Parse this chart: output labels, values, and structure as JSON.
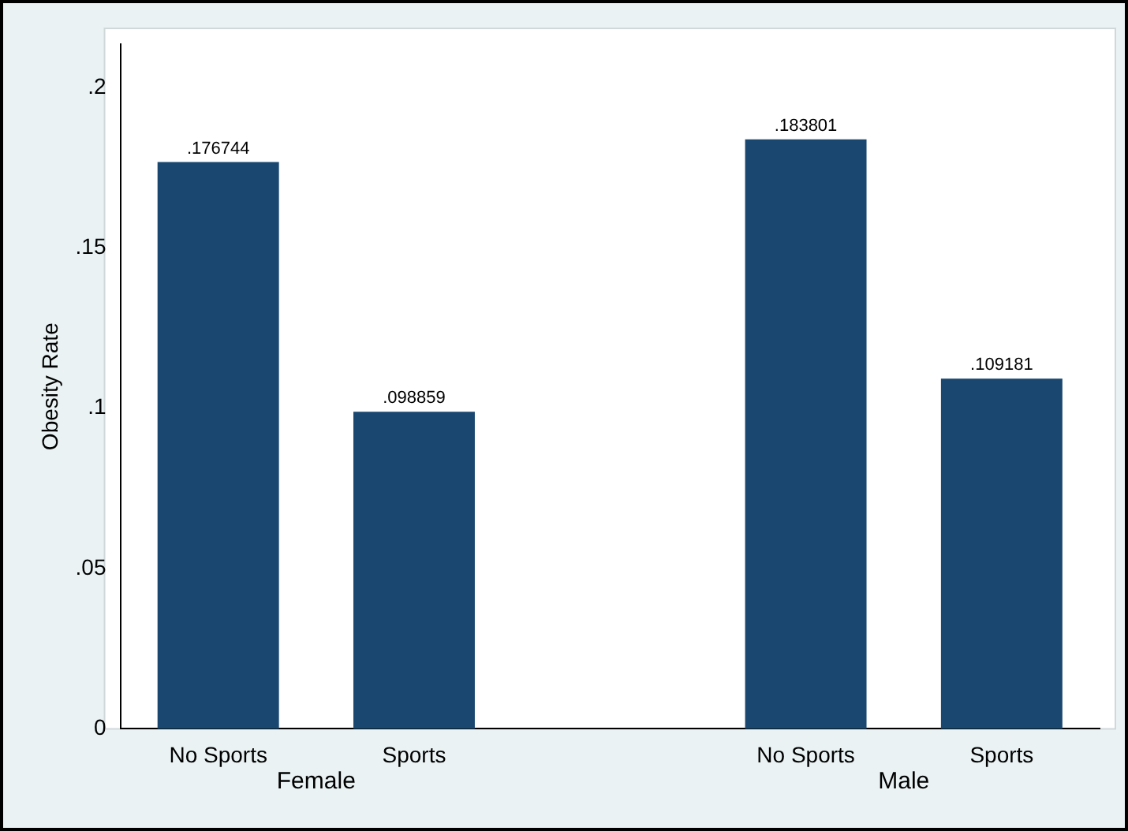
{
  "chart_data": {
    "type": "bar",
    "ylabel": "Obesity Rate",
    "categories": [
      "No Sports",
      "Sports",
      null,
      "No Sports",
      "Sports"
    ],
    "values": [
      0.176744,
      0.098859,
      null,
      0.183801,
      0.109181
    ],
    "value_labels": [
      ".176744",
      ".098859",
      null,
      ".183801",
      ".109181"
    ],
    "color": "#1a476f",
    "ylim": [
      0,
      0.2135
    ],
    "yticks": [
      {
        "value": 0,
        "label": "0"
      },
      {
        "value": 0.05,
        "label": ".05"
      },
      {
        "value": 0.1,
        "label": ".1"
      },
      {
        "value": 0.15,
        "label": ".15"
      },
      {
        "value": 0.2,
        "label": ".2"
      }
    ],
    "annotations": [
      "Female",
      "Male"
    ],
    "grid": false,
    "legend": false
  }
}
